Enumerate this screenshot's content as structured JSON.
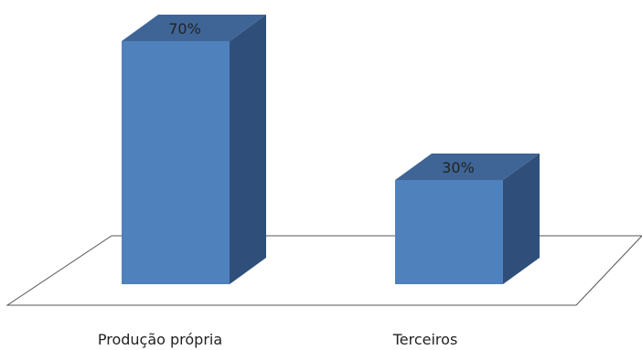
{
  "chart_data": {
    "type": "bar",
    "categories": [
      "Produção própria",
      "Terceiros"
    ],
    "values": [
      70,
      30
    ],
    "value_labels": [
      "70%",
      "30%"
    ],
    "ylim": [
      0,
      70
    ],
    "style": "3d-column",
    "colors": {
      "front": "#4f81bd",
      "top": "#3f6596",
      "side": "#2f4f7a",
      "floor_stroke": "#555555"
    }
  }
}
